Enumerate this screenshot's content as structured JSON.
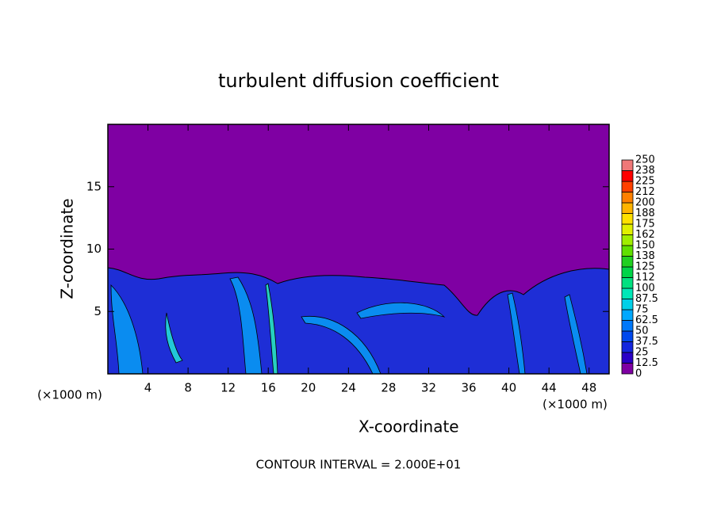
{
  "chart_data": {
    "type": "contour",
    "title": "turbulent diffusion coefficient",
    "xlabel": "X-coordinate",
    "ylabel": "Z-coordinate",
    "xunit": "(×1000 m)",
    "note": "CONTOUR INTERVAL = 2.000E+01",
    "xlim": [
      0,
      50
    ],
    "ylim": [
      0,
      20
    ],
    "xticks": [
      4,
      8,
      12,
      16,
      20,
      24,
      28,
      32,
      36,
      40,
      44,
      48
    ],
    "yticks": [
      5,
      10,
      15
    ],
    "background": "#7f00a3",
    "colorbar": {
      "levels": [
        0,
        12.5,
        25,
        37.5,
        50,
        62.5,
        75,
        87.5,
        100,
        112,
        125,
        138,
        150,
        162,
        175,
        188,
        200,
        212,
        225,
        238,
        250
      ],
      "colors": [
        "#7f00a3",
        "#2a00c6",
        "#1426de",
        "#0048ee",
        "#0078fa",
        "#00a8ff",
        "#00d0e8",
        "#00e8b8",
        "#00e080",
        "#00d448",
        "#20d020",
        "#60e000",
        "#a0ee00",
        "#e0f000",
        "#ffe000",
        "#ffb400",
        "#ff8000",
        "#ff4000",
        "#ff0000",
        "#f07878"
      ]
    }
  }
}
